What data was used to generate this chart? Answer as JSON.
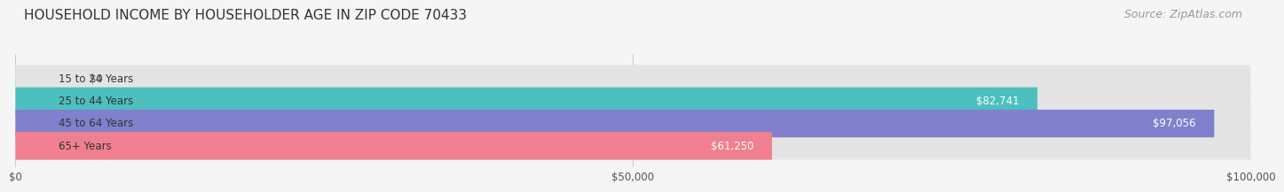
{
  "title": "HOUSEHOLD INCOME BY HOUSEHOLDER AGE IN ZIP CODE 70433",
  "source": "Source: ZipAtlas.com",
  "categories": [
    "15 to 24 Years",
    "25 to 44 Years",
    "45 to 64 Years",
    "65+ Years"
  ],
  "values": [
    0,
    82741,
    97056,
    61250
  ],
  "bar_colors": [
    "#c9a8d4",
    "#4dbfbf",
    "#8080cc",
    "#f08090"
  ],
  "label_colors": [
    "#333333",
    "#ffffff",
    "#ffffff",
    "#ffffff"
  ],
  "value_labels": [
    "$0",
    "$82,741",
    "$97,056",
    "$61,250"
  ],
  "xlim": [
    0,
    100000
  ],
  "xticks": [
    0,
    50000,
    100000
  ],
  "xtick_labels": [
    "$0",
    "$50,000",
    "$100,000"
  ],
  "background_color": "#f5f5f5",
  "bar_background": "#e4e4e4",
  "title_fontsize": 11,
  "source_fontsize": 9,
  "bar_height": 0.62
}
